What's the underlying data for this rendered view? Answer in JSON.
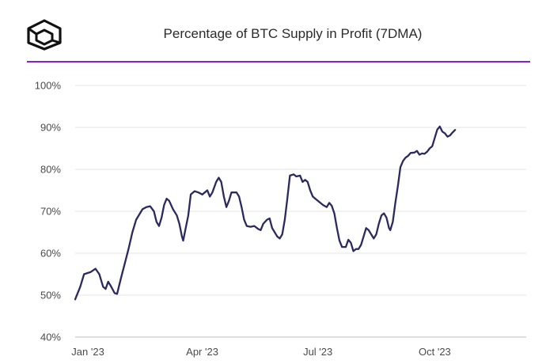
{
  "header": {
    "logo_icon": "cube-logo-icon",
    "title": "Percentage of BTC Supply in Profit (7DMA)",
    "accent_color": "#8a1fcf"
  },
  "chart_data": {
    "type": "line",
    "title": "Percentage of BTC Supply in Profit (7DMA)",
    "xlabel": "",
    "ylabel": "",
    "ylim": [
      40,
      100
    ],
    "yticks": [
      "40%",
      "50%",
      "60%",
      "70%",
      "80%",
      "90%",
      "100%"
    ],
    "ytick_values": [
      40,
      50,
      60,
      70,
      80,
      90,
      100
    ],
    "xticks": [
      "Jan '23",
      "Apr '23",
      "Jul '23",
      "Oct '23"
    ],
    "xtick_days": [
      0,
      90,
      181,
      273
    ],
    "xlim_days": [
      -10,
      345
    ],
    "grid": true,
    "line_color": "#2b2a5e",
    "series": [
      {
        "name": "",
        "points": [
          [
            -10,
            49
          ],
          [
            -6,
            52
          ],
          [
            -3,
            55
          ],
          [
            2,
            55.5
          ],
          [
            6,
            56.3
          ],
          [
            9,
            55
          ],
          [
            12,
            52
          ],
          [
            14,
            51.5
          ],
          [
            16,
            53.2
          ],
          [
            18,
            52.2
          ],
          [
            21,
            50.5
          ],
          [
            23,
            50.3
          ],
          [
            26,
            54
          ],
          [
            29,
            57.5
          ],
          [
            32,
            61
          ],
          [
            35,
            65
          ],
          [
            38,
            68
          ],
          [
            41,
            69.5
          ],
          [
            43,
            70.5
          ],
          [
            46,
            71
          ],
          [
            49,
            71.2
          ],
          [
            52,
            70
          ],
          [
            54,
            67.5
          ],
          [
            56,
            66.5
          ],
          [
            58,
            68.5
          ],
          [
            60,
            71.5
          ],
          [
            62,
            73
          ],
          [
            64,
            72.5
          ],
          [
            67,
            70.5
          ],
          [
            70,
            69
          ],
          [
            72,
            67
          ],
          [
            74,
            64
          ],
          [
            75,
            63
          ],
          [
            77,
            66
          ],
          [
            79,
            69
          ],
          [
            81,
            74
          ],
          [
            84,
            74.8
          ],
          [
            87,
            74.5
          ],
          [
            90,
            74
          ],
          [
            92,
            74.5
          ],
          [
            94,
            75
          ],
          [
            96,
            73.5
          ],
          [
            98,
            74.5
          ],
          [
            101,
            77
          ],
          [
            103,
            78
          ],
          [
            105,
            77
          ],
          [
            107,
            73.5
          ],
          [
            109,
            71
          ],
          [
            111,
            72.5
          ],
          [
            113,
            74.5
          ],
          [
            117,
            74.5
          ],
          [
            119,
            73.5
          ],
          [
            121,
            71
          ],
          [
            123,
            68
          ],
          [
            125,
            66.5
          ],
          [
            128,
            66.3
          ],
          [
            131,
            66.5
          ],
          [
            134,
            65.8
          ],
          [
            136,
            65.5
          ],
          [
            138,
            67
          ],
          [
            141,
            68
          ],
          [
            143,
            68.3
          ],
          [
            145,
            66
          ],
          [
            147,
            65
          ],
          [
            149,
            64
          ],
          [
            151,
            63.5
          ],
          [
            153,
            64.5
          ],
          [
            155,
            68
          ],
          [
            157,
            73
          ],
          [
            159,
            78.5
          ],
          [
            162,
            78.8
          ],
          [
            164,
            78.3
          ],
          [
            167,
            78.5
          ],
          [
            169,
            77
          ],
          [
            171,
            77.5
          ],
          [
            173,
            77
          ],
          [
            175,
            75
          ],
          [
            177,
            73.5
          ],
          [
            179,
            73
          ],
          [
            181,
            72.5
          ],
          [
            183,
            72
          ],
          [
            185,
            71.5
          ],
          [
            188,
            71
          ],
          [
            190,
            72
          ],
          [
            192,
            71.3
          ],
          [
            194,
            69.5
          ],
          [
            196,
            66
          ],
          [
            198,
            63
          ],
          [
            200,
            61.5
          ],
          [
            203,
            61.5
          ],
          [
            205,
            63.2
          ],
          [
            207,
            62.5
          ],
          [
            209,
            60.5
          ],
          [
            211,
            61
          ],
          [
            213,
            61
          ],
          [
            215,
            62
          ],
          [
            217,
            64
          ],
          [
            219,
            66
          ],
          [
            221,
            65.5
          ],
          [
            223,
            64.5
          ],
          [
            225,
            63.5
          ],
          [
            227,
            64.5
          ],
          [
            229,
            67
          ],
          [
            231,
            69
          ],
          [
            233,
            69.5
          ],
          [
            235,
            68.5
          ],
          [
            237,
            66
          ],
          [
            238,
            65.5
          ],
          [
            240,
            67.5
          ],
          [
            242,
            72
          ],
          [
            244,
            76
          ],
          [
            246,
            80.5
          ],
          [
            248,
            82
          ],
          [
            250,
            82.8
          ],
          [
            252,
            83.2
          ],
          [
            254,
            83.9
          ],
          [
            257,
            84
          ],
          [
            259,
            84.4
          ],
          [
            261,
            83.5
          ],
          [
            263,
            83.8
          ],
          [
            265,
            83.7
          ],
          [
            267,
            84.2
          ],
          [
            269,
            85
          ],
          [
            271,
            85.5
          ],
          [
            273,
            87.5
          ],
          [
            275,
            89.5
          ],
          [
            277,
            90.2
          ],
          [
            279,
            89
          ],
          [
            281,
            88.6
          ],
          [
            283,
            87.8
          ],
          [
            285,
            88.1
          ],
          [
            287,
            88.8
          ],
          [
            289,
            89.4
          ]
        ]
      }
    ]
  }
}
